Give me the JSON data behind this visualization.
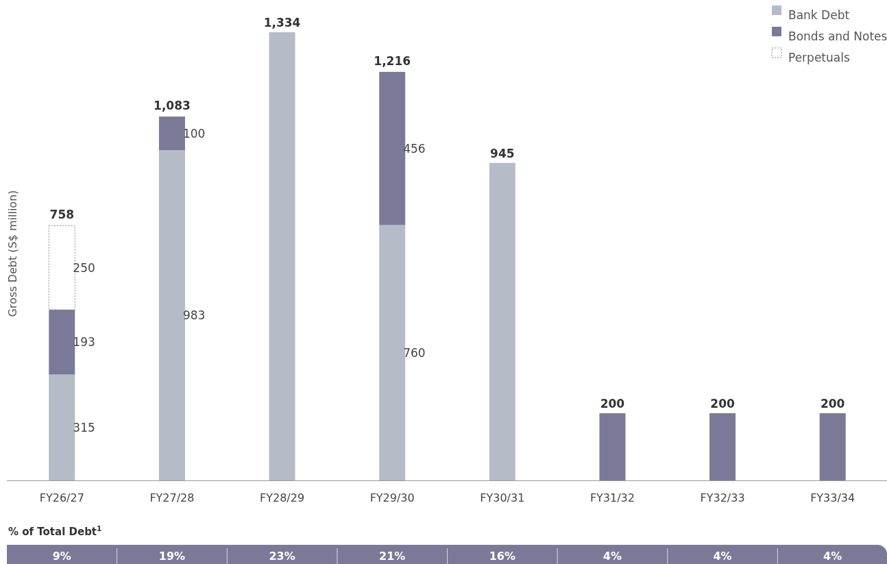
{
  "chart_data": {
    "type": "bar",
    "stacked": true,
    "ylabel": "Gross Debt (S$ million)",
    "legend": "top right",
    "categories": [
      "FY26/27",
      "FY27/28",
      "FY28/29",
      "FY29/30",
      "FY30/31",
      "FY31/32",
      "FY32/33",
      "FY33/34"
    ],
    "series": [
      {
        "name": "Bank Debt",
        "color": "#b5bbc7",
        "values": [
          315,
          983,
          1334,
          760,
          945,
          null,
          null,
          null
        ],
        "value_labels": [
          "315",
          "983",
          "1,334",
          "760",
          "945",
          null,
          null,
          null
        ]
      },
      {
        "name": "Bonds and Notes",
        "color": "#7a7a98",
        "values": [
          193,
          100,
          null,
          456,
          null,
          200,
          200,
          200
        ],
        "value_labels": [
          "193",
          "100",
          null,
          "456",
          null,
          "200",
          "200",
          "200"
        ]
      },
      {
        "name": "Perpetuals",
        "color": "#ffffff",
        "line_style": "dotted",
        "values": [
          250,
          null,
          null,
          null,
          null,
          null,
          null,
          null
        ],
        "value_labels": [
          "250",
          null,
          null,
          null,
          null,
          null,
          null,
          null
        ]
      }
    ],
    "totals": [
      "758",
      "1,083",
      null,
      "1,216",
      null,
      null,
      null,
      null
    ],
    "annotations": [
      "% of Total Debt$^{1}$",
      "9%",
      "19%",
      "23%",
      "21%",
      "16%",
      "4%",
      "4%",
      "4%"
    ]
  }
}
